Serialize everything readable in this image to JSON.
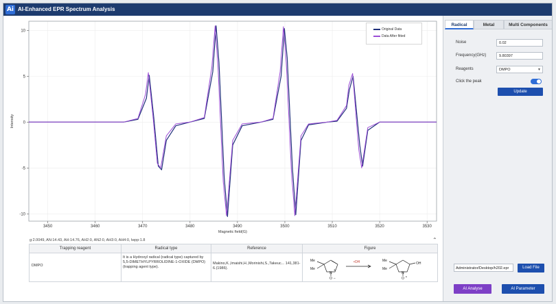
{
  "window": {
    "title": "AI-Enhanced EPR Spectrum Analysis",
    "logo_text": "Ai"
  },
  "plot": {
    "legend": [
      {
        "name": "Original Data",
        "color": "#1f2f7a"
      },
      {
        "name": "Data After fitted",
        "color": "#9b4dd6"
      }
    ],
    "save_icon": "save-icon",
    "params_text": "g:2.0049, AN:14.43, AH:14.76, AH2:0, AN2:0, AH3:0, AH4:0, lwpp:1.8"
  },
  "chart_data": {
    "type": "line",
    "xlabel": "Magnetic field(G)",
    "ylabel": "Intensity",
    "xlim": [
      3446,
      3532
    ],
    "ylim": [
      -10.8,
      11
    ],
    "xticks": [
      3450,
      3460,
      3470,
      3480,
      3490,
      3500,
      3510,
      3520,
      3530
    ],
    "yticks": [
      10,
      5,
      0,
      -5,
      -10
    ],
    "grid": true,
    "legend_position": "top-right",
    "series": [
      {
        "name": "Original Data",
        "color": "#1f2f7a",
        "x": [
          3446,
          3466,
          3469,
          3470.8,
          3471.4,
          3472.4,
          3473.3,
          3474,
          3475,
          3477,
          3480,
          3483,
          3484.8,
          3485.5,
          3486.1,
          3487.2,
          3487.9,
          3489,
          3491,
          3495,
          3497.5,
          3499.2,
          3499.9,
          3500.5,
          3501.6,
          3502.3,
          3503.4,
          3505,
          3509,
          3511,
          3513,
          3513.6,
          3514.4,
          3515.8,
          3516.4,
          3517.5,
          3520,
          3532
        ],
        "y": [
          0,
          0,
          0.3,
          2.6,
          5.1,
          0.3,
          -4.8,
          -5.2,
          -2.0,
          -0.4,
          0,
          0.4,
          5.5,
          10.5,
          6.5,
          -6.0,
          -10.3,
          -2.5,
          -0.4,
          0,
          0.3,
          5.0,
          10.2,
          7.0,
          -5.0,
          -10.1,
          -2.0,
          -0.3,
          0,
          0.1,
          1.5,
          3.5,
          5.0,
          -2.5,
          -4.8,
          -0.9,
          0,
          0
        ]
      },
      {
        "name": "Data After fitted",
        "color": "#9b4dd6",
        "x": [
          3446,
          3466,
          3469,
          3470.6,
          3471.2,
          3472.2,
          3473.1,
          3473.8,
          3475,
          3477,
          3480,
          3483,
          3484.6,
          3485.3,
          3485.9,
          3487,
          3487.7,
          3489,
          3491,
          3495,
          3497.5,
          3499,
          3499.7,
          3500.3,
          3501.4,
          3502.1,
          3503.4,
          3505,
          3509,
          3511,
          3513,
          3513.5,
          3514.3,
          3515.6,
          3516.2,
          3517.5,
          3520,
          3532
        ],
        "y": [
          0,
          0,
          0.4,
          3.0,
          5.4,
          0.5,
          -4.5,
          -5.0,
          -1.5,
          -0.2,
          0,
          0.5,
          6.0,
          10.5,
          6.0,
          -6.5,
          -10.2,
          -2.0,
          -0.2,
          0,
          0.4,
          5.5,
          10.4,
          6.5,
          -5.5,
          -10.2,
          -1.5,
          -0.2,
          0,
          0.2,
          1.8,
          4.0,
          5.3,
          -3.0,
          -5.0,
          -0.6,
          0,
          0
        ]
      }
    ]
  },
  "results_table": {
    "headers": [
      "Trapping reagent",
      "Radical type",
      "Reference",
      "Figure"
    ],
    "rows": [
      {
        "reagent": "DMPO",
        "radical_type": "It is a Hydroxyl radical (radical type) captured by 5,5-DIMETHYLPYRROLIDINE-1-OXIDE (DMPO) (trapping agent type).",
        "reference": "Makino,K.,Imaishi,H.,Morinishi,S.,Takeuc... 141,381-6.(1986).",
        "figure": {
          "left_me_top": "Me",
          "left_me_bottom": "Me",
          "left_n_label": "N",
          "left_n_charge": "+",
          "left_o_label": "O",
          "left_o_charge": "−",
          "reagent": "•OH",
          "right_me_top": "Me",
          "right_me_bottom": "Me",
          "right_n_label": "N",
          "right_oh_label": "OH",
          "right_o_label": "O",
          "right_o_radical": "•"
        }
      }
    ]
  },
  "sidepanel": {
    "tabs": [
      {
        "label": "Radical",
        "active": true
      },
      {
        "label": "Metal",
        "active": false
      },
      {
        "label": "Multi Components",
        "active": false
      }
    ],
    "fields": {
      "noise": {
        "label": "Noise",
        "value": "0.02"
      },
      "frequency": {
        "label": "Frequency(GHz)",
        "value": "9.80397"
      },
      "reagents": {
        "label": "Reagents",
        "value": "DMPO"
      }
    },
    "click_peak_label": "Click the peak",
    "click_peak_on": true,
    "update_label": "Update",
    "file_path": "Administrator/Desktop/h202.epr",
    "load_label": "Load File",
    "ai_analyse_label": "AI Analyse",
    "ai_parameter_label": "AI Parameter"
  }
}
